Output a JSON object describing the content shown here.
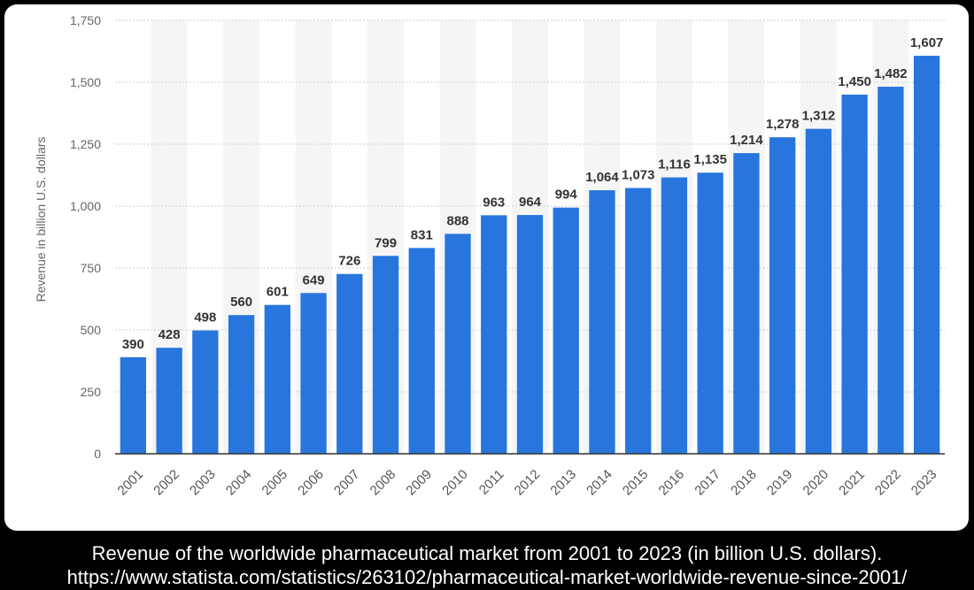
{
  "chart_data": {
    "type": "bar",
    "title": "Revenue of the worldwide pharmaceutical market from 2001 to 2023 (in billion U.S. dollars).",
    "source": "https://www.statista.com/statistics/263102/pharmaceutical-market-worldwide-revenue-since-2001/",
    "xlabel": "",
    "ylabel": "Revenue in billion U.S. dollars",
    "ylim": [
      0,
      1750
    ],
    "yticks": [
      0,
      250,
      500,
      750,
      1000,
      1250,
      1500,
      1750
    ],
    "ytick_labels": [
      "0",
      "250",
      "500",
      "750",
      "1,000",
      "1,250",
      "1,500",
      "1,750"
    ],
    "categories": [
      "2001",
      "2002",
      "2003",
      "2004",
      "2005",
      "2006",
      "2007",
      "2008",
      "2009",
      "2010",
      "2011",
      "2012",
      "2013",
      "2014",
      "2015",
      "2016",
      "2017",
      "2018",
      "2019",
      "2020",
      "2021",
      "2022",
      "2023"
    ],
    "values": [
      390,
      428,
      498,
      560,
      601,
      649,
      726,
      799,
      831,
      888,
      963,
      964,
      994,
      1064,
      1073,
      1116,
      1135,
      1214,
      1278,
      1312,
      1450,
      1482,
      1607
    ],
    "value_labels": [
      "390",
      "428",
      "498",
      "560",
      "601",
      "649",
      "726",
      "799",
      "831",
      "888",
      "963",
      "964",
      "994",
      "1,064",
      "1,073",
      "1,116",
      "1,135",
      "1,214",
      "1,278",
      "1,312",
      "1,450",
      "1,482",
      "1,607"
    ],
    "grid": true,
    "bar_color": "#2876dd"
  }
}
